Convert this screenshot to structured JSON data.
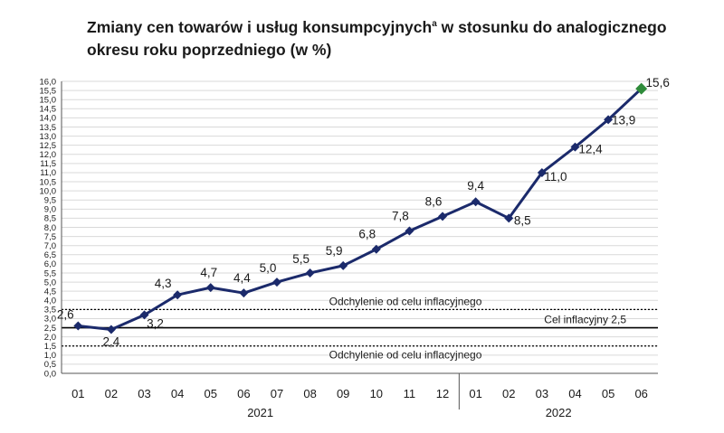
{
  "chart_data": {
    "type": "line",
    "title": "Zmiany cen towarów i usług konsumpcyjnych",
    "title_sup": "a",
    "title_rest": " w stosunku do analogicznego okresu roku poprzedniego (w %)",
    "categories": [
      "01",
      "02",
      "03",
      "04",
      "05",
      "06",
      "07",
      "08",
      "09",
      "10",
      "11",
      "12",
      "01",
      "02",
      "03",
      "04",
      "05",
      "06"
    ],
    "years": [
      {
        "label": "2021",
        "from": 0,
        "to": 11
      },
      {
        "label": "2022",
        "from": 12,
        "to": 17
      }
    ],
    "series": [
      {
        "values": [
          2.6,
          2.4,
          3.2,
          4.3,
          4.7,
          4.4,
          5.0,
          5.5,
          5.9,
          6.8,
          7.8,
          8.6,
          9.4,
          8.5,
          11.0,
          12.4,
          13.9,
          15.6
        ],
        "labels": [
          "2,6",
          "2,4",
          "3,2",
          "4,3",
          "4,7",
          "4,4",
          "5,0",
          "5,5",
          "5,9",
          "6,8",
          "7,8",
          "8,6",
          "9,4",
          "8,5",
          "11,0",
          "12,4",
          "13,9",
          "15,6"
        ],
        "color": "#1b2a6b",
        "last_point_color": "#2e8b3a"
      }
    ],
    "ylim": [
      0,
      16
    ],
    "ystep": 0.5,
    "ytick_labels": [
      "0,0",
      "0,5",
      "1,0",
      "1,5",
      "2,0",
      "2,5",
      "3,0",
      "3,5",
      "4,0",
      "4,5",
      "5,0",
      "5,5",
      "6,0",
      "6,5",
      "7,0",
      "7,5",
      "8,0",
      "8,5",
      "9,0",
      "9,5",
      "10,0",
      "10,5",
      "11,0",
      "11,5",
      "12,0",
      "12,5",
      "13,0",
      "13,5",
      "14,0",
      "14,5",
      "15,0",
      "15,5",
      "16,0"
    ],
    "grid": true,
    "reference_lines": [
      {
        "value": 3.5,
        "style": "dotted",
        "label": "Odchylenie od celu inflacyjnego"
      },
      {
        "value": 2.5,
        "style": "solid",
        "label": "Cel inflacyjny 2,5"
      },
      {
        "value": 1.5,
        "style": "dotted",
        "label": "Odchylenie od celu inflacyjnego"
      }
    ]
  }
}
